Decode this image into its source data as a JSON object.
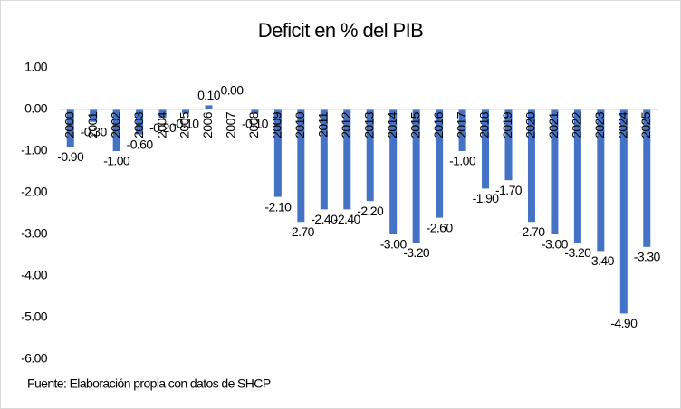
{
  "chart_data": {
    "type": "bar",
    "title": "Deficit en % del PIB",
    "categories": [
      "2000",
      "2001",
      "2002",
      "2003",
      "2004",
      "2005",
      "2006",
      "2007",
      "2008",
      "2009",
      "2010",
      "2011",
      "2012",
      "2013",
      "2014",
      "2015",
      "2016",
      "2017",
      "2018",
      "2019",
      "2020",
      "2021",
      "2022",
      "2023",
      "2024",
      "2025"
    ],
    "values": [
      -0.9,
      -0.3,
      -1.0,
      -0.6,
      -0.2,
      -0.1,
      0.1,
      0.0,
      -0.1,
      -2.1,
      -2.7,
      -2.4,
      -2.4,
      -2.2,
      -3.0,
      -3.2,
      -2.6,
      -1.0,
      -1.9,
      -1.7,
      -2.7,
      -3.0,
      -3.2,
      -3.4,
      -4.9,
      -3.3
    ],
    "value_labels": [
      "-0.90",
      "-0.30",
      "-1.00",
      "-0.60",
      "-0.20",
      "-0.10",
      "0.10",
      "0.00",
      "-0.10",
      "-2.10",
      "-2.70",
      "-2.40",
      "-2.40",
      "-2.20",
      "-3.00",
      "-3.20",
      "-2.60",
      "-1.00",
      "-1.90",
      "-1.70",
      "-2.70",
      "-3.00",
      "-3.20",
      "-3.40",
      "-4.90",
      "-3.30"
    ],
    "color": "#4472c4",
    "ylim": [
      -6,
      1
    ],
    "yticks": [
      {
        "value": 1,
        "label": "1.00"
      },
      {
        "value": 0,
        "label": "0.00"
      },
      {
        "value": -1,
        "label": "-1.00"
      },
      {
        "value": -2,
        "label": "-2.00"
      },
      {
        "value": -3,
        "label": "-3.00"
      },
      {
        "value": -4,
        "label": "-4.00"
      },
      {
        "value": -5,
        "label": "-5.00"
      },
      {
        "value": -6,
        "label": "-6.00"
      }
    ],
    "grid": false,
    "source": "Fuente: Elaboración propia con datos de SHCP"
  }
}
